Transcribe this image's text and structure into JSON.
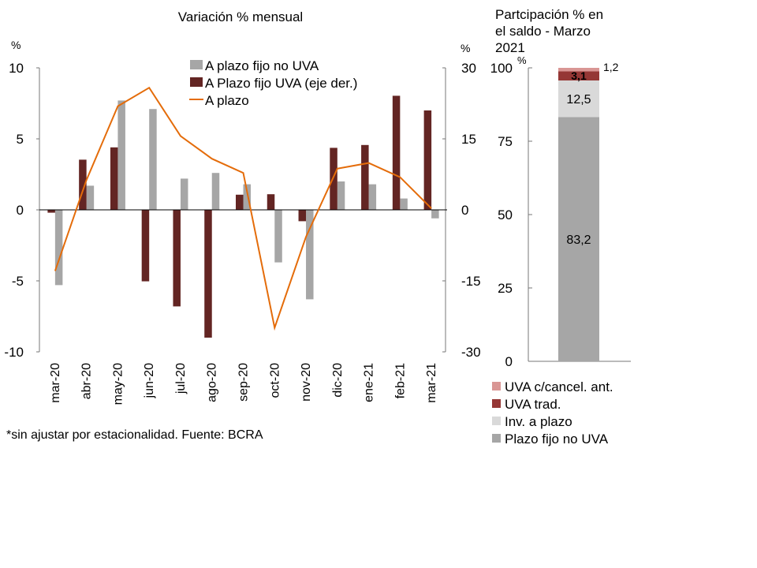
{
  "chart_data": [
    {
      "type": "bar+line",
      "title": "Variación % mensual",
      "ylabel_left": "%",
      "ylabel_right": "%",
      "ylim_left": [
        -10,
        10
      ],
      "yticks_left": [
        "10",
        "5",
        "0",
        "-5",
        "-10"
      ],
      "ylim_right": [
        -30,
        30
      ],
      "yticks_right": [
        "30",
        "15",
        "0",
        "-15",
        "-30"
      ],
      "categories": [
        "mar-20",
        "abr-20",
        "may-20",
        "jun-20",
        "jul-20",
        "ago-20",
        "sep-20",
        "oct-20",
        "nov-20",
        "dic-20",
        "ene-21",
        "feb-21",
        "mar-21"
      ],
      "series": [
        {
          "name": "A plazo fijo no UVA",
          "type": "bar",
          "axis": "left",
          "color": "#a6a6a6",
          "values": [
            -5.3,
            1.7,
            7.7,
            7.1,
            2.2,
            2.6,
            1.8,
            -3.7,
            -6.3,
            2.0,
            1.8,
            0.8,
            -0.6
          ]
        },
        {
          "name": "A Plazo fijo UVA (eje der.)",
          "type": "bar",
          "axis": "right",
          "color": "#632523",
          "values": [
            -0.6,
            10.6,
            13.2,
            -15.1,
            -20.4,
            -27.0,
            3.2,
            3.3,
            -2.4,
            13.1,
            13.7,
            24.1,
            21.0
          ]
        },
        {
          "name": "A plazo",
          "type": "line",
          "axis": "left",
          "color": "#e46c0a",
          "values": [
            -4.3,
            2.1,
            7.3,
            8.6,
            5.2,
            3.6,
            2.6,
            -8.3,
            -1.9,
            2.9,
            3.3,
            2.3,
            0.1
          ]
        }
      ],
      "legend": "top-right",
      "footnote": "*sin ajustar por estacionalidad. Fuente: BCRA"
    },
    {
      "type": "stacked-bar",
      "title": "Partcipación % en el saldo - Marzo 2021",
      "ylabel": "%",
      "ylim": [
        0,
        100
      ],
      "yticks": [
        "100",
        "75",
        "50",
        "25",
        "0"
      ],
      "segments": [
        {
          "name": "Plazo fijo no UVA",
          "value": 83.2,
          "label": "83,2",
          "color": "#a6a6a6"
        },
        {
          "name": "Inv. a plazo",
          "value": 12.5,
          "label": "12,5",
          "color": "#d9d9d9"
        },
        {
          "name": "UVA trad.",
          "value": 3.1,
          "label": "3,1",
          "color": "#953735"
        },
        {
          "name": "UVA c/cancel. ant.",
          "value": 1.2,
          "label": "1,2",
          "color": "#d99694"
        }
      ],
      "legend": "bottom"
    }
  ]
}
